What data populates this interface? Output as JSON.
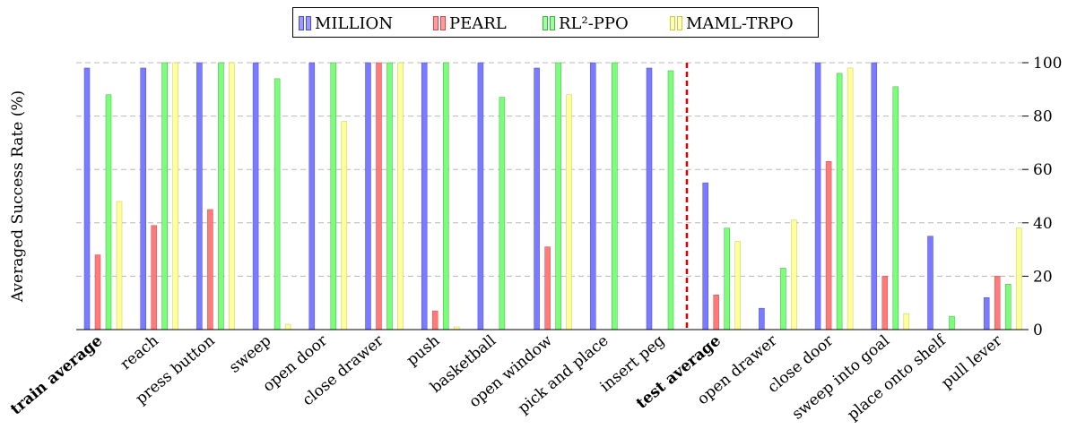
{
  "chart_data": {
    "type": "bar",
    "ylabel": "Averaged Success Rate (%)",
    "xlabel": "",
    "ylim": [
      0,
      100
    ],
    "yticks": [
      "0",
      "20",
      "40",
      "60",
      "80",
      "100"
    ],
    "grid": "horizontal dashed",
    "legend_position": "top-center",
    "categories": [
      "train average",
      "reach",
      "press button",
      "sweep",
      "open door",
      "close drawer",
      "push",
      "basketball",
      "open window",
      "pick and place",
      "insert peg",
      "test average",
      "open drawer",
      "close door",
      "sweep into goal",
      "place onto shelf",
      "pull lever"
    ],
    "bold_categories": [
      "train average",
      "test average"
    ],
    "separator_after": "insert peg",
    "series": [
      {
        "name": "MILLION",
        "color": "#7b7bff",
        "values": [
          98,
          98,
          100,
          100,
          100,
          100,
          100,
          100,
          98,
          100,
          98,
          55,
          8,
          100,
          100,
          35,
          12
        ]
      },
      {
        "name": "PEARL",
        "color": "#ff7b7b",
        "values": [
          28,
          39,
          45,
          0,
          0,
          100,
          7,
          0,
          31,
          0,
          0,
          13,
          0,
          63,
          20,
          0,
          20
        ]
      },
      {
        "name": "RL²-PPO",
        "color": "#7bff7b",
        "values": [
          88,
          100,
          100,
          94,
          100,
          100,
          100,
          87,
          100,
          100,
          97,
          38,
          23,
          96,
          91,
          5,
          17
        ]
      },
      {
        "name": "MAML-TRPO",
        "color": "#ffff9b",
        "values": [
          48,
          100,
          100,
          2,
          78,
          100,
          1,
          0,
          88,
          0,
          0,
          33,
          41,
          98,
          6,
          0,
          38
        ]
      }
    ]
  },
  "legend": {
    "items": [
      {
        "label": "MILLION",
        "fill": "#9b9bff",
        "stroke": "#4b4bd0"
      },
      {
        "label": "PEARL",
        "fill": "#ff9b9b",
        "stroke": "#d04b4b"
      },
      {
        "label": "RL²-PPO",
        "fill": "#9bff9b",
        "stroke": "#3faf3f"
      },
      {
        "label": "MAML-TRPO",
        "fill": "#ffffb0",
        "stroke": "#c8c850"
      }
    ]
  }
}
